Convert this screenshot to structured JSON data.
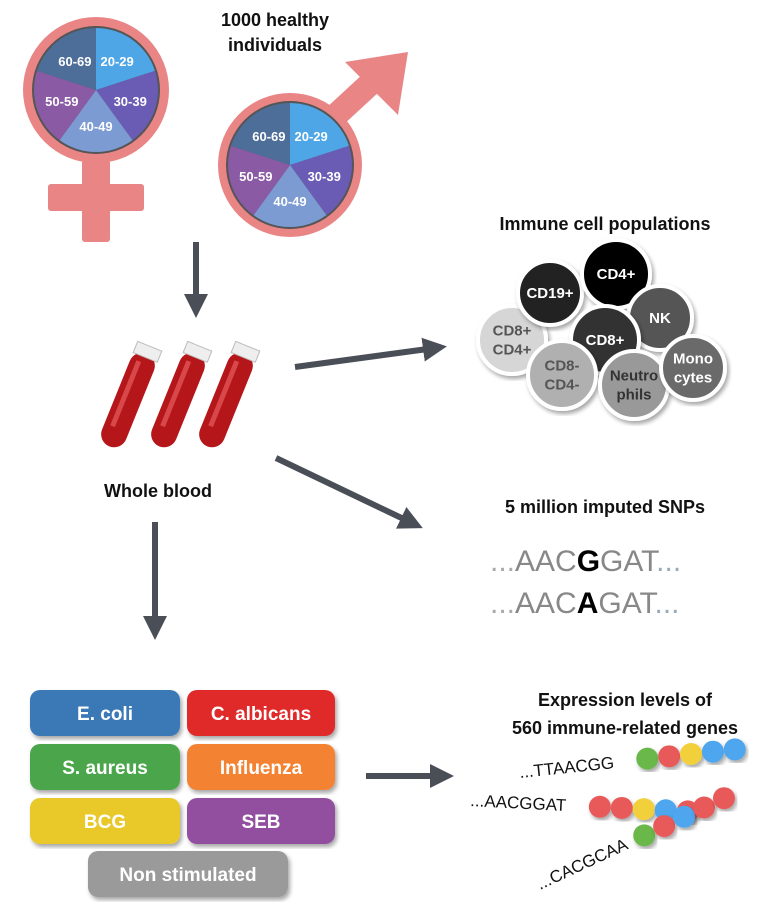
{
  "title": [
    "1000 healthy",
    "individuals"
  ],
  "age_groups": [
    "20-29",
    "30-39",
    "40-49",
    "50-59",
    "60-69"
  ],
  "age_colors": [
    "#4ea6e6",
    "#6a5cb4",
    "#7b9bd2",
    "#8a5aa4",
    "#4d6e99"
  ],
  "symbol_color": "#e98585",
  "blood_label": "Whole blood",
  "immune": {
    "title": "Immune cell populations",
    "cells": [
      {
        "label": [
          "CD8+",
          "CD4+"
        ],
        "fill": "#d6d6d6",
        "text": "#555"
      },
      {
        "label": [
          "CD19+"
        ],
        "fill": "#222",
        "text": "#fff"
      },
      {
        "label": [
          "CD4+"
        ],
        "fill": "#000",
        "text": "#fff"
      },
      {
        "label": [
          "NK"
        ],
        "fill": "#555",
        "text": "#fff"
      },
      {
        "label": [
          "CD8+"
        ],
        "fill": "#333",
        "text": "#fff"
      },
      {
        "label": [
          "CD8-",
          "CD4-"
        ],
        "fill": "#b0b0b0",
        "text": "#555"
      },
      {
        "label": [
          "Neutro",
          "phils"
        ],
        "fill": "#999",
        "text": "#333"
      },
      {
        "label": [
          "Mono",
          "cytes"
        ],
        "fill": "#6a6a6a",
        "text": "#fff"
      }
    ]
  },
  "snps": {
    "title": "5 million imputed SNPs",
    "seq1": {
      "pre": "...",
      "a": "AAC",
      "v": "G",
      "b": "GAT",
      "post": "..."
    },
    "seq2": {
      "pre": "...",
      "a": "AAC",
      "v": "A",
      "b": "GAT",
      "post": "..."
    }
  },
  "stimuli": [
    {
      "label": "E. coli",
      "color": "#3a78b6"
    },
    {
      "label": "C. albicans",
      "color": "#e02b2b"
    },
    {
      "label": "S. aureus",
      "color": "#4ba64b"
    },
    {
      "label": "Influenza",
      "color": "#f38330"
    },
    {
      "label": "BCG",
      "color": "#e9c82c"
    },
    {
      "label": "SEB",
      "color": "#924fa0"
    },
    {
      "label": "Non stimulated",
      "color": "#9a9a9a"
    }
  ],
  "expression": {
    "title": [
      "Expression levels of",
      "560 immune-related genes"
    ],
    "strands": [
      {
        "seq": "...TTAACGG",
        "beads": [
          "#6ab84a",
          "#e85a5a",
          "#f2d03a",
          "#4da6ee",
          "#4da6ee"
        ]
      },
      {
        "seq": "...AACGGAT",
        "beads": [
          "#e85a5a",
          "#e85a5a",
          "#f2d03a",
          "#4da6ee",
          "#e85a5a"
        ]
      },
      {
        "seq": "...CACGCAA",
        "beads": [
          "#6ab84a",
          "#e85a5a",
          "#4da6ee",
          "#e85a5a",
          "#e85a5a"
        ]
      }
    ]
  }
}
